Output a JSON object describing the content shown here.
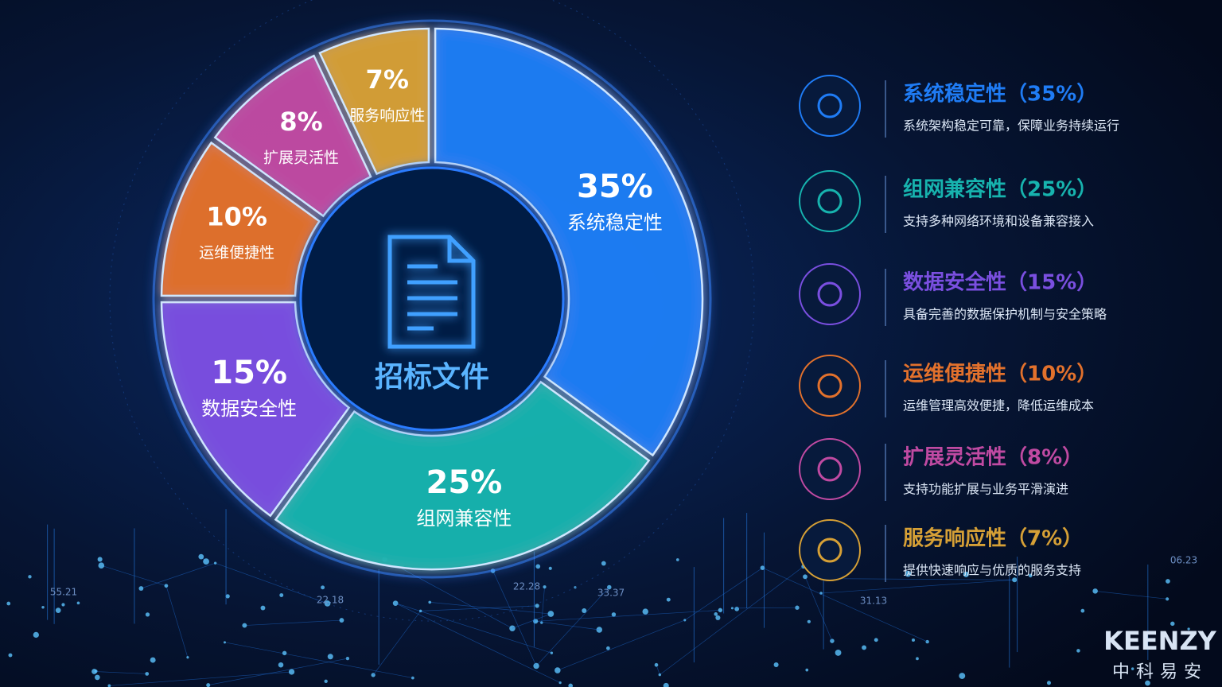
{
  "chart_data": {
    "type": "donut",
    "center_label": "招标文件",
    "categories": [
      "系统稳定性",
      "组网兼容性",
      "数据安全性",
      "运维便捷性",
      "扩展灵活性",
      "服务响应性"
    ],
    "values": [
      35,
      25,
      15,
      10,
      8,
      7
    ],
    "value_labels": [
      "35%",
      "25%",
      "15%",
      "10%",
      "8%",
      "7%"
    ],
    "colors": [
      "#1f7cf5",
      "#17b3ae",
      "#7a4fe0",
      "#e2712c",
      "#c04aa2",
      "#d6a036"
    ],
    "legend": [
      {
        "title": "系统稳定性（35%）",
        "description": "系统架构稳定可靠，保障业务持续运行"
      },
      {
        "title": "组网兼容性（25%）",
        "description": "支持多种网络环境和设备兼容接入"
      },
      {
        "title": "数据安全性（15%）",
        "description": "具备完善的数据保护机制与安全策略"
      },
      {
        "title": "运维便捷性（10%）",
        "description": "运维管理高效便捷，降低运维成本"
      },
      {
        "title": "扩展灵活性（8%）",
        "description": "支持功能扩展与业务平滑演进"
      },
      {
        "title": "服务响应性（7%）",
        "description": "提供快速响应与优质的服务支持"
      }
    ]
  },
  "decor": {
    "numbers": [
      "55.21",
      "22.18",
      "22.28",
      "33.37",
      "31.13",
      "06.23"
    ],
    "brand": "KEENZY",
    "brand_cn": "中科易安"
  }
}
